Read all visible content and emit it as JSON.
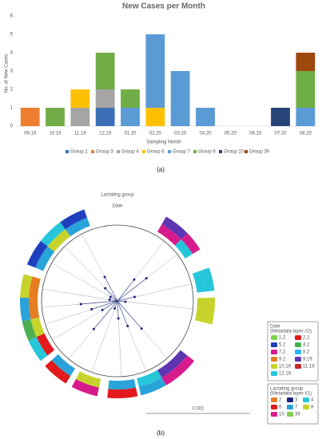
{
  "chart_data": {
    "type": "stacked_bar",
    "title": "New Cases per Month",
    "ylabel": "No. of New Cases",
    "xlabel": "Sampling Month",
    "categories": [
      "09.19",
      "10.19",
      "11.19",
      "12.19",
      "01.20",
      "02.20",
      "03.20",
      "04.20",
      "05.20",
      "06.20",
      "07.20",
      "08.20"
    ],
    "series": [
      {
        "name": "Group 1",
        "color": "#3a6fb5",
        "values": [
          0,
          0,
          0,
          1,
          0,
          0,
          0,
          0,
          0,
          0,
          0,
          0
        ]
      },
      {
        "name": "Group 3",
        "color": "#ed7d31",
        "values": [
          1,
          0,
          0,
          0,
          0,
          0,
          0,
          0,
          0,
          0,
          0,
          0
        ]
      },
      {
        "name": "Group 4",
        "color": "#a5a5a5",
        "values": [
          0,
          0,
          1,
          1,
          0,
          0,
          0,
          0,
          0,
          0,
          0,
          0
        ]
      },
      {
        "name": "Group 6",
        "color": "#ffc000",
        "values": [
          0,
          0,
          1,
          0,
          0,
          1,
          0,
          0,
          0,
          0,
          0,
          0
        ]
      },
      {
        "name": "Group 7",
        "color": "#5b9bd5",
        "values": [
          0,
          0,
          0,
          0,
          1,
          4,
          3,
          1,
          0,
          0,
          0,
          1
        ]
      },
      {
        "name": "Group 8",
        "color": "#70ad47",
        "values": [
          0,
          1,
          0,
          2,
          1,
          0,
          0,
          0,
          0,
          0,
          0,
          2
        ]
      },
      {
        "name": "Group 10",
        "color": "#264478",
        "values": [
          0,
          0,
          0,
          0,
          0,
          0,
          0,
          0,
          0,
          0,
          1,
          0
        ]
      },
      {
        "name": "Group 39",
        "color": "#9e480e",
        "values": [
          0,
          0,
          0,
          0,
          0,
          0,
          0,
          0,
          0,
          0,
          0,
          1
        ]
      }
    ],
    "ylim": [
      0,
      6
    ],
    "yticks": [
      0,
      1,
      2,
      3,
      4,
      5,
      6
    ],
    "legend": "bottom"
  },
  "figure": {
    "label_a": "(a)",
    "label_b": "(b)",
    "tree": {
      "ring_labels": [
        "Lactating group",
        "Date"
      ],
      "scale_label": "0.001",
      "legends": [
        {
          "title": "Date",
          "subtitle": "(Metadata layer #2)",
          "items": [
            {
              "label": "1.2",
              "color": "#7fd34e"
            },
            {
              "label": "2.2",
              "color": "#e31a1c"
            },
            {
              "label": "5.2",
              "color": "#1f3fbf"
            },
            {
              "label": "4.2",
              "color": "#4caf50"
            },
            {
              "label": "7.2",
              "color": "#d81b8c"
            },
            {
              "label": "8.2",
              "color": "#29b6f6"
            },
            {
              "label": "9.2",
              "color": "#e67e22"
            },
            {
              "label": "9.19",
              "color": "#5e35b1"
            },
            {
              "label": "10.19",
              "color": "#c6d32b"
            },
            {
              "label": "11.19",
              "color": "#c62828"
            },
            {
              "label": "12.19",
              "color": "#26c6da"
            }
          ]
        },
        {
          "title": "Lactating group",
          "subtitle": "(Metadata layer #1)",
          "items": [
            {
              "label": "2",
              "color": "#e67e22"
            },
            {
              "label": "3",
              "color": "#1a237e"
            },
            {
              "label": "4",
              "color": "#26c6da"
            },
            {
              "label": "6",
              "color": "#e31a1c"
            },
            {
              "label": "7",
              "color": "#29a3d9"
            },
            {
              "label": "8",
              "color": "#c6d32b"
            },
            {
              "label": "10",
              "color": "#d81b8c"
            },
            {
              "label": "39",
              "color": "#7fd34e"
            }
          ]
        }
      ]
    }
  }
}
